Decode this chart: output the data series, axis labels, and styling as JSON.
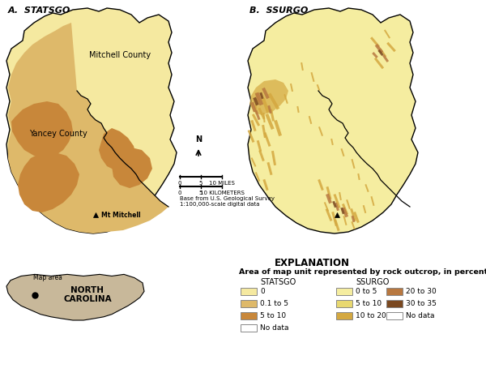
{
  "title_a": "A.  STATSGO",
  "title_b": "B.  SSURGO",
  "explanation_title": "EXPLANATION",
  "explanation_subtitle": "Area of map unit represented by rock outcrop, in percent",
  "statsgo_label": "STATSGO",
  "ssurgo_label": "SSURGO",
  "statsgo_legend": [
    {
      "color": "#F5E9A0",
      "label": "0"
    },
    {
      "color": "#DEB96A",
      "label": "0.1 to 5"
    },
    {
      "color": "#C8873A",
      "label": "5 to 10"
    },
    {
      "color": "#FFFFFF",
      "label": "No data",
      "edgecolor": "#888888"
    }
  ],
  "ssurgo_legend": [
    {
      "color": "#F5EDA0",
      "label": "0 to 5"
    },
    {
      "color": "#E8D870",
      "label": "5 to 10"
    },
    {
      "color": "#D4A840",
      "label": "10 to 20"
    },
    {
      "color": "#B87840",
      "label": "20 to 30"
    },
    {
      "color": "#7A4820",
      "label": "30 to 35"
    },
    {
      "color": "#FFFFFF",
      "label": "No data",
      "edgecolor": "#888888"
    }
  ],
  "north_carolina_label": "NORTH\nCAROLINA",
  "map_area_label": "Map area",
  "scale_bar_text_miles": "10 MILES",
  "scale_bar_text_km": "10 KILOMETERS",
  "base_text": "Base from U.S. Geological Survey\n1:100,000-scale digital data",
  "bg_color": "#FFFFFF",
  "mitchell_label": "Mitchell County",
  "yancey_label": "Yancey County",
  "mt_mitchell_label": "Mt Mitchell"
}
